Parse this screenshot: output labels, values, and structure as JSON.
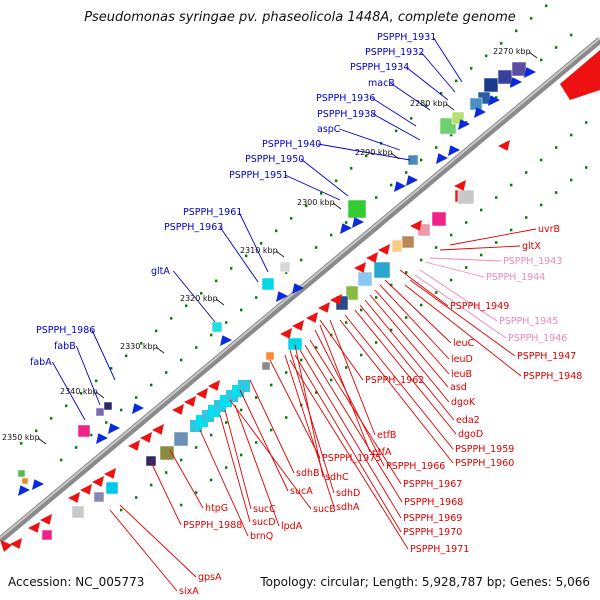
{
  "title": "Pseudomonas syringae pv. phaseolicola 1448A, complete genome",
  "footer": {
    "accession": "Accession: NC_005773",
    "summary": "Topology: circular; Length: 5,928,787 bp; Genes: 5,066"
  },
  "kbp_marks": [
    "2270 kbp",
    "2280 kbp",
    "2290 kbp",
    "2300 kbp",
    "2310 kbp",
    "2320 kbp",
    "2330 kbp",
    "2340 kbp",
    "2350 kbp"
  ],
  "colors": {
    "forward_label": "#0000cc",
    "reverse_label": "#dd0000",
    "pink_label": "#ee88bb",
    "backbone": "#808080",
    "tick": "#008000"
  },
  "labels_forward": [
    "PSPPH_1931",
    "PSPPH_1932",
    "PSPPH_1934",
    "macB",
    "PSPPH_1936",
    "PSPPH_1938",
    "aspC",
    "PSPPH_1940",
    "PSPPH_1950",
    "PSPPH_1951",
    "PSPPH_1961",
    "PSPPH_1963",
    "gltA",
    "PSPPH_1986",
    "fabB",
    "fabA"
  ],
  "labels_reverse": [
    "uvrB",
    "gltX",
    "PSPPH_1943",
    "PSPPH_1944",
    "PSPPH_1949",
    "PSPPH_1945",
    "PSPPH_1946",
    "leuC",
    "PSPPH_1947",
    "leuD",
    "leuB",
    "PSPPH_1948",
    "PSPPH_1962",
    "asd",
    "dgoK",
    "eda2",
    "dgoD",
    "etfB",
    "PSPPH_1959",
    "etfA",
    "PSPPH_1960",
    "PSPPH_1975",
    "PSPPH_1966",
    "sdhB",
    "sdhC",
    "PSPPH_1967",
    "sucA",
    "sdhD",
    "PSPPH_1968",
    "sucB",
    "sdhA",
    "htpG",
    "sucC",
    "PSPPH_1969",
    "sucD",
    "PSPPH_1988",
    "lpdA",
    "PSPPH_1970",
    "brnQ",
    "PSPPH_1971",
    "gpsA",
    "sixA"
  ]
}
